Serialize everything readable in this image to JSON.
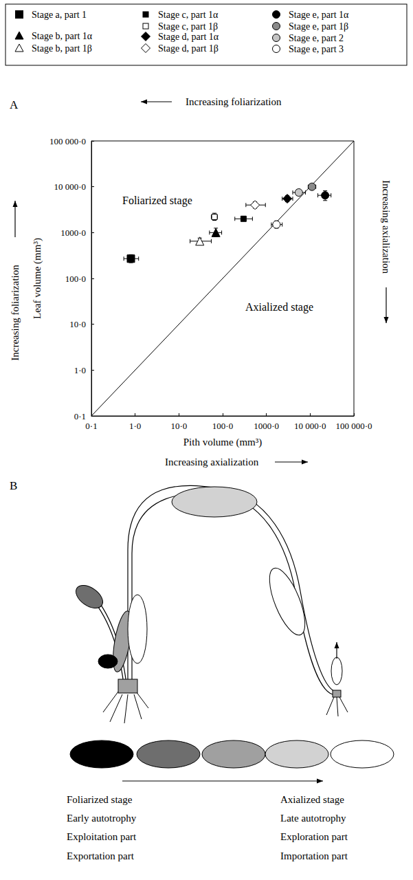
{
  "panel_labels": [
    "A",
    "B"
  ],
  "chart_data": {
    "type": "scatter",
    "log": true,
    "grid": false,
    "legend": "top",
    "xlabel": "Pith volume (mm³)",
    "ylabel": "Leaf volume (mm³)",
    "xlim": [
      0.1,
      100000
    ],
    "ylim": [
      0.1,
      100000
    ],
    "xticks": [
      {
        "value": 0.1,
        "label": "0·1"
      },
      {
        "value": 1,
        "label": "1·0"
      },
      {
        "value": 10,
        "label": "10·0"
      },
      {
        "value": 100,
        "label": "100·0"
      },
      {
        "value": 1000,
        "label": "1000·0"
      },
      {
        "value": 10000,
        "label": "10 000·0"
      },
      {
        "value": 100000,
        "label": "100 000·0"
      }
    ],
    "yticks": [
      {
        "value": 0.1,
        "label": "0·1"
      },
      {
        "value": 1,
        "label": "1·0"
      },
      {
        "value": 10,
        "label": "10·0"
      },
      {
        "value": 100,
        "label": "100·0"
      },
      {
        "value": 1000,
        "label": "1000·0"
      },
      {
        "value": 10000,
        "label": "10 000·0"
      },
      {
        "value": 100000,
        "label": "100 000·0"
      }
    ],
    "series": [
      {
        "name": "Stage a, part 1",
        "marker": "square",
        "color": "#000000",
        "x": [
          0.8
        ],
        "y": [
          270
        ],
        "xerr": [
          [
            0.55,
            1.2
          ]
        ],
        "yerr": [
          [
            220,
            330
          ]
        ]
      },
      {
        "name": "Stage b, part 1α",
        "marker": "triangle",
        "color": "#000000",
        "x": [
          70
        ],
        "y": [
          1000
        ],
        "xerr": [
          [
            50,
            95
          ]
        ],
        "yerr": [
          [
            820,
            1250
          ]
        ]
      },
      {
        "name": "Stage b, part 1β",
        "marker": "triangle",
        "color": "#ffffff",
        "x": [
          30
        ],
        "y": [
          650
        ],
        "xerr": [
          [
            18,
            55
          ]
        ],
        "yerr": [
          [
            560,
            760
          ]
        ]
      },
      {
        "name": "Stage c, part 1α",
        "marker": "small_square",
        "color": "#000000",
        "x": [
          300
        ],
        "y": [
          2000
        ],
        "xerr": [
          [
            190,
            480
          ]
        ],
        "yerr": [
          [
            1800,
            2250
          ]
        ]
      },
      {
        "name": "Stage c, part 1β",
        "marker": "small_square",
        "color": "#ffffff",
        "x": [
          65
        ],
        "y": [
          2200
        ],
        "xerr": [
          [
            55,
            76
          ]
        ],
        "yerr": [
          [
            1850,
            2650
          ]
        ]
      },
      {
        "name": "Stage d, part 1α",
        "marker": "diamond",
        "color": "#000000",
        "x": [
          3000
        ],
        "y": [
          5500
        ],
        "xerr": [
          [
            2300,
            4000
          ]
        ],
        "yerr": [
          [
            4700,
            6400
          ]
        ]
      },
      {
        "name": "Stage d, part 1β",
        "marker": "diamond",
        "color": "#ffffff",
        "x": [
          550
        ],
        "y": [
          4000
        ],
        "xerr": [
          [
            340,
            950
          ]
        ],
        "yerr": [
          [
            3400,
            4700
          ]
        ]
      },
      {
        "name": "Stage e, part 1α",
        "marker": "circle",
        "color": "#000000",
        "x": [
          22000
        ],
        "y": [
          6500
        ],
        "xerr": [
          [
            15000,
            30000
          ]
        ],
        "yerr": [
          [
            5000,
            8200
          ]
        ]
      },
      {
        "name": "Stage e, part 1β",
        "marker": "circle",
        "color": "#8a8a8a",
        "x": [
          11000
        ],
        "y": [
          10000
        ],
        "xerr": [
          [
            9000,
            13500
          ]
        ],
        "yerr": [
          [
            8600,
            11500
          ]
        ]
      },
      {
        "name": "Stage e, part 2",
        "marker": "circle",
        "color": "#c4c4c4",
        "x": [
          5500
        ],
        "y": [
          7500
        ],
        "xerr": [
          [
            4000,
            7800
          ]
        ],
        "yerr": [
          [
            6600,
            8600
          ]
        ]
      },
      {
        "name": "Stage e, part 3",
        "marker": "circle",
        "color": "#ffffff",
        "x": [
          1700
        ],
        "y": [
          1500
        ],
        "xerr": [
          [
            1300,
            2300
          ]
        ],
        "yerr": [
          [
            1250,
            1800
          ]
        ]
      }
    ],
    "diagonal": {
      "x": [
        0.1,
        100000
      ],
      "y": [
        0.1,
        100000
      ]
    },
    "annotations": {
      "upper_region": "Foliarized stage",
      "lower_region": "Axialized stage",
      "top": "Increasing foliarization",
      "left": "Increasing foliarization",
      "right": "Increasing axialization",
      "bottom": "Increasing axialization"
    }
  },
  "diagram": {
    "scale_colors": [
      "#000000",
      "#6e6e6e",
      "#a0a0a0",
      "#d2d2d2",
      "#ffffff"
    ],
    "left_labels": [
      "Foliarized stage",
      "Early autotrophy",
      "Exploitation part",
      "Exportation part"
    ],
    "right_labels": [
      "Axialized stage",
      "Late autotrophy",
      "Exploration part",
      "Importation part"
    ]
  }
}
